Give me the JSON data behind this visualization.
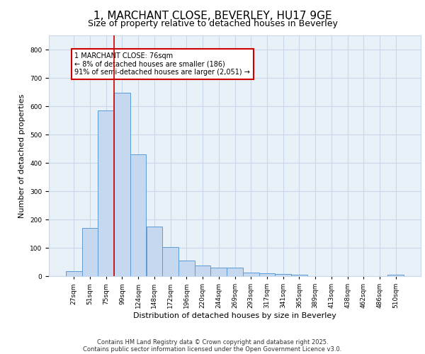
{
  "title_line1": "1, MARCHANT CLOSE, BEVERLEY, HU17 9GE",
  "title_line2": "Size of property relative to detached houses in Beverley",
  "xlabel": "Distribution of detached houses by size in Beverley",
  "ylabel": "Number of detached properties",
  "categories": [
    "27sqm",
    "51sqm",
    "75sqm",
    "99sqm",
    "124sqm",
    "148sqm",
    "172sqm",
    "196sqm",
    "220sqm",
    "244sqm",
    "269sqm",
    "293sqm",
    "317sqm",
    "341sqm",
    "365sqm",
    "389sqm",
    "413sqm",
    "438sqm",
    "462sqm",
    "486sqm",
    "510sqm"
  ],
  "values": [
    18,
    170,
    585,
    648,
    430,
    174,
    102,
    55,
    38,
    30,
    30,
    13,
    9,
    7,
    5,
    0,
    0,
    0,
    0,
    0,
    5
  ],
  "bar_color": "#c5d8f0",
  "bar_edge_color": "#5b9bd5",
  "vline_x": 2.5,
  "vline_color": "#cc0000",
  "annotation_text": "1 MARCHANT CLOSE: 76sqm\n← 8% of detached houses are smaller (186)\n91% of semi-detached houses are larger (2,051) →",
  "annotation_box_color": "#ffffff",
  "annotation_box_edge": "#cc0000",
  "grid_color": "#c8d8e8",
  "bg_color": "#e8f0f8",
  "ylim": [
    0,
    850
  ],
  "yticks": [
    0,
    100,
    200,
    300,
    400,
    500,
    600,
    700,
    800
  ],
  "footer_line1": "Contains HM Land Registry data © Crown copyright and database right 2025.",
  "footer_line2": "Contains public sector information licensed under the Open Government Licence v3.0.",
  "title_fontsize": 11,
  "subtitle_fontsize": 9,
  "tick_fontsize": 6.5,
  "ylabel_fontsize": 8,
  "xlabel_fontsize": 8,
  "footer_fontsize": 6,
  "annot_fontsize": 7
}
